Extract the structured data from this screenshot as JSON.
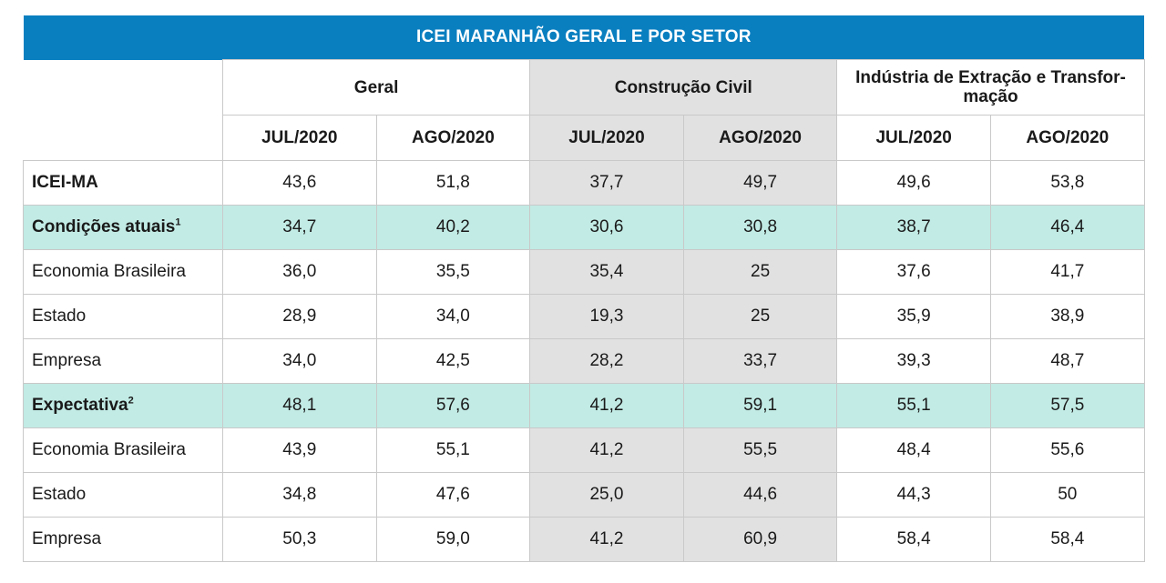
{
  "table": {
    "title": "ICEI MARANHÃO GERAL E POR SETOR",
    "groups": [
      {
        "label": "Geral"
      },
      {
        "label": "Construção Civil"
      },
      {
        "label": "Indústria de Extração e Transfor-mação"
      }
    ],
    "periods": [
      "JUL/2020",
      "AGO/2020",
      "JUL/2020",
      "AGO/2020",
      "JUL/2020",
      "AGO/2020"
    ],
    "colors": {
      "header": "#0a7fc0",
      "highlight_row": "#c2ebe5",
      "shaded_column": "#e1e1e2"
    },
    "rows": [
      {
        "label": "ICEI-MA",
        "sup": "",
        "style": "bold",
        "values": [
          "43,6",
          "51,8",
          "37,7",
          "49,7",
          "49,6",
          "53,8"
        ]
      },
      {
        "label": "Condições atuais",
        "sup": "1",
        "style": "highlight",
        "values": [
          "34,7",
          "40,2",
          "30,6",
          "30,8",
          "38,7",
          "46,4"
        ]
      },
      {
        "label": "Economia Brasileira",
        "sup": "",
        "style": "normal",
        "values": [
          "36,0",
          "35,5",
          "35,4",
          "25",
          "37,6",
          "41,7"
        ]
      },
      {
        "label": "Estado",
        "sup": "",
        "style": "normal",
        "values": [
          "28,9",
          "34,0",
          "19,3",
          "25",
          "35,9",
          "38,9"
        ]
      },
      {
        "label": "Empresa",
        "sup": "",
        "style": "normal",
        "values": [
          "34,0",
          "42,5",
          "28,2",
          "33,7",
          "39,3",
          "48,7"
        ]
      },
      {
        "label": "Expectativa",
        "sup": "2",
        "style": "highlight",
        "values": [
          "48,1",
          "57,6",
          "41,2",
          "59,1",
          "55,1",
          "57,5"
        ]
      },
      {
        "label": "Economia Brasileira",
        "sup": "",
        "style": "normal",
        "values": [
          "43,9",
          "55,1",
          "41,2",
          "55,5",
          "48,4",
          "55,6"
        ]
      },
      {
        "label": "Estado",
        "sup": "",
        "style": "normal",
        "values": [
          "34,8",
          "47,6",
          "25,0",
          "44,6",
          "44,3",
          "50"
        ]
      },
      {
        "label": "Empresa",
        "sup": "",
        "style": "normal",
        "values": [
          "50,3",
          "59,0",
          "41,2",
          "60,9",
          "58,4",
          "58,4"
        ]
      }
    ]
  }
}
